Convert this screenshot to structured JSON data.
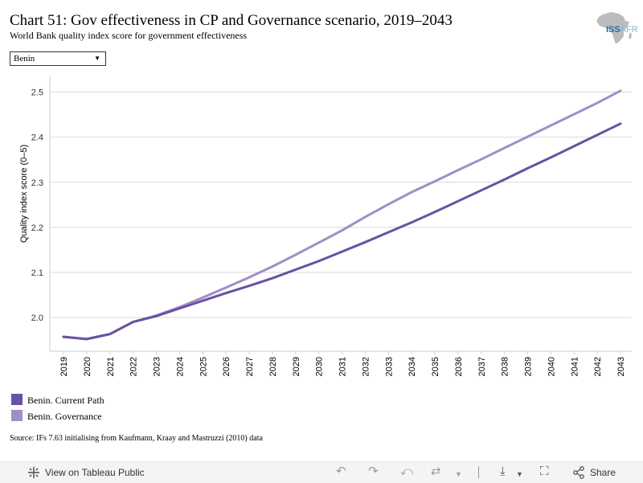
{
  "header": {
    "title": "Chart 51: Gov effectiveness in CP and Governance scenario, 2019–2043",
    "subtitle": "World Bank quality index score for government effectiveness",
    "logo_text_iss": "ISS",
    "logo_text_afr": "AFR"
  },
  "filter": {
    "selected": "Benin"
  },
  "chart_data": {
    "type": "line",
    "ylabel": "Quality index score (0–5)",
    "ylim": [
      1.925,
      2.535
    ],
    "yticks": [
      2.0,
      2.1,
      2.2,
      2.3,
      2.4,
      2.5
    ],
    "ytick_labels": [
      "2.0",
      "2.1",
      "2.2",
      "2.3",
      "2.4",
      "2.5"
    ],
    "x": [
      2019,
      2020,
      2021,
      2022,
      2023,
      2024,
      2025,
      2026,
      2027,
      2028,
      2029,
      2030,
      2031,
      2032,
      2033,
      2034,
      2035,
      2036,
      2037,
      2038,
      2039,
      2040,
      2041,
      2042,
      2043
    ],
    "x_labels": [
      "2019",
      "2020",
      "2021",
      "2022",
      "2023",
      "2024",
      "2025",
      "2026",
      "2027",
      "2028",
      "2029",
      "2030",
      "2031",
      "2032",
      "2033",
      "2034",
      "2035",
      "2036",
      "2037",
      "2038",
      "2039",
      "2040",
      "2041",
      "2042",
      "2043"
    ],
    "grid": true,
    "series": [
      {
        "name": "Benin. Current Path",
        "color": "#6a51a3",
        "values": [
          1.957,
          1.952,
          1.963,
          1.99,
          2.003,
          2.02,
          2.037,
          2.054,
          2.07,
          2.087,
          2.106,
          2.125,
          2.146,
          2.167,
          2.189,
          2.211,
          2.234,
          2.258,
          2.282,
          2.306,
          2.331,
          2.355,
          2.38,
          2.405,
          2.43
        ]
      },
      {
        "name": "Benin. Governance",
        "color": "#9e8fc8",
        "values": [
          1.957,
          1.952,
          1.963,
          1.99,
          2.004,
          2.023,
          2.044,
          2.066,
          2.089,
          2.113,
          2.139,
          2.166,
          2.193,
          2.223,
          2.251,
          2.278,
          2.302,
          2.327,
          2.351,
          2.376,
          2.401,
          2.426,
          2.451,
          2.476,
          2.503
        ]
      }
    ]
  },
  "source": "Source: IFs 7.63 initialising from Kaufmann, Kraay and Mastruzzi (2010) data",
  "footer": {
    "view_label": "View on Tableau Public",
    "share_label": "Share",
    "icons": [
      "tableau-icon",
      "undo-icon",
      "redo-icon",
      "revert-icon",
      "refresh-icon",
      "download-icon",
      "fullscreen-icon",
      "share-icon"
    ]
  }
}
